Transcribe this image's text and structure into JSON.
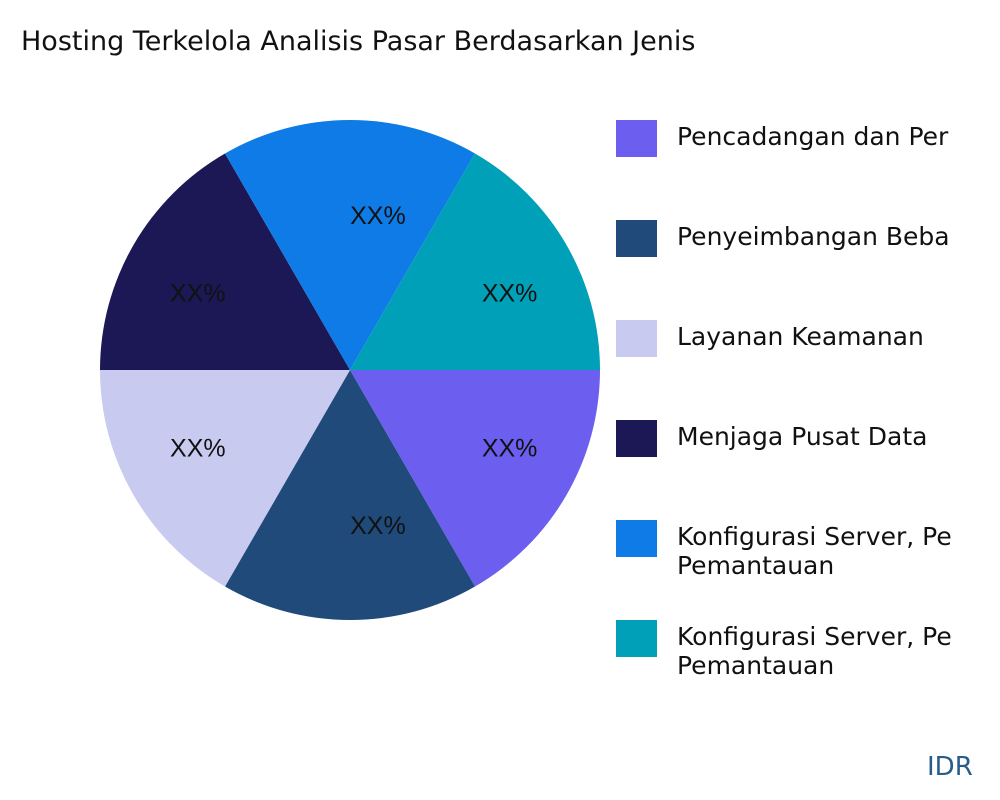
{
  "chart_data": {
    "type": "pie",
    "title": "Hosting Terkelola Analisis Pasar Berdasarkan Jenis",
    "categories": [
      "Pencadangan dan Per",
      "Penyeimbangan Beba",
      "Layanan Keamanan",
      "Menjaga Pusat Data",
      "Konfigurasi Server, Pe\nPemantauan",
      "Konfigurasi Server, Pe\nPemantauan"
    ],
    "values": [
      1,
      1,
      1,
      1,
      1,
      1
    ],
    "data_labels": [
      "XX%",
      "XX%",
      "XX%",
      "XX%",
      "XX%",
      "XX%"
    ],
    "colors": [
      "#6c5ff0",
      "#1f4a7a",
      "#c8caf0",
      "#1c1755",
      "#0e7be6",
      "#00a0b8"
    ],
    "legend_position": "right"
  },
  "brand": "IDR"
}
